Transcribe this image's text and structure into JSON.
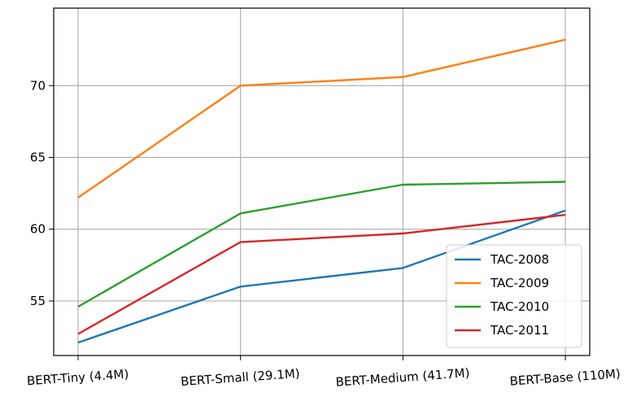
{
  "chart_data": {
    "type": "line",
    "categories": [
      "BERT-Tiny (4.4M)",
      "BERT-Small (29.1M)",
      "BERT-Medium (41.7M)",
      "BERT-Base (110M)"
    ],
    "series": [
      {
        "name": "TAC-2008",
        "color": "#1f77b4",
        "values": [
          52.1,
          56.0,
          57.3,
          61.3
        ]
      },
      {
        "name": "TAC-2009",
        "color": "#ff7f0e",
        "values": [
          62.2,
          70.0,
          70.6,
          73.2
        ]
      },
      {
        "name": "TAC-2010",
        "color": "#2ca02c",
        "values": [
          54.6,
          61.1,
          63.1,
          63.3
        ]
      },
      {
        "name": "TAC-2011",
        "color": "#d62728",
        "values": [
          52.7,
          59.1,
          59.7,
          61.0
        ]
      }
    ],
    "yticks": [
      55,
      60,
      65,
      70
    ],
    "ylim": [
      51.2,
      75.4
    ],
    "grid": true,
    "legend_position": "lower-right",
    "x_tick_rotation": "slight",
    "title": "",
    "xlabel": "",
    "ylabel": ""
  }
}
